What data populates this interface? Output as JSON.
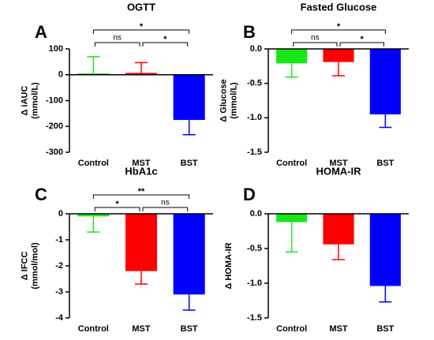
{
  "chart_data": [
    {
      "type": "bar",
      "panel_label": "A",
      "title": "OGTT",
      "ylabel": [
        "Δ iAUC",
        "(mmol/L)"
      ],
      "categories": [
        "Control",
        "MST",
        "BST"
      ],
      "values": [
        5,
        7,
        -175
      ],
      "errors": [
        65,
        40,
        57
      ],
      "colors": [
        "#19e619",
        "#ff0000",
        "#0000ff"
      ],
      "ylim": [
        -300,
        100
      ],
      "yticks": [
        -300,
        -200,
        -100,
        0,
        100
      ],
      "annotations": [
        {
          "from": "Control",
          "to": "MST",
          "label": "ns"
        },
        {
          "from": "MST",
          "to": "BST",
          "label": "*"
        },
        {
          "from": "Control",
          "to": "BST",
          "label": "*"
        }
      ]
    },
    {
      "type": "bar",
      "panel_label": "B",
      "title": "Fasted Glucose",
      "ylabel": [
        "Δ Glucose",
        "(mmol/L)"
      ],
      "categories": [
        "Control",
        "MST",
        "BST"
      ],
      "values": [
        -0.21,
        -0.19,
        -0.95
      ],
      "errors": [
        0.2,
        0.2,
        0.19
      ],
      "colors": [
        "#19e619",
        "#ff0000",
        "#0000ff"
      ],
      "ylim": [
        -1.5,
        0
      ],
      "yticks": [
        -1.5,
        {
          "value": -1,
          "label": "-1.0"
        },
        -0.5,
        {
          "value": 0,
          "label": "0.0"
        }
      ],
      "annotations": [
        {
          "from": "Control",
          "to": "MST",
          "label": "ns"
        },
        {
          "from": "MST",
          "to": "BST",
          "label": "*"
        },
        {
          "from": "Control",
          "to": "BST",
          "label": "*"
        }
      ]
    },
    {
      "type": "bar",
      "panel_label": "C",
      "title": "HbA1c",
      "ylabel": [
        "Δ IFCC",
        "(mmol/mol)"
      ],
      "categories": [
        "Control",
        "MST",
        "BST"
      ],
      "values": [
        -0.1,
        -2.2,
        -3.1
      ],
      "errors": [
        0.6,
        0.5,
        0.6
      ],
      "colors": [
        "#19e619",
        "#ff0000",
        "#0000ff"
      ],
      "ylim": [
        -4,
        0
      ],
      "yticks": [
        -4,
        -3,
        -2,
        -1,
        0
      ],
      "annotations": [
        {
          "from": "Control",
          "to": "MST",
          "label": "*"
        },
        {
          "from": "MST",
          "to": "BST",
          "label": "ns"
        },
        {
          "from": "Control",
          "to": "BST",
          "label": "**"
        }
      ]
    },
    {
      "type": "bar",
      "panel_label": "D",
      "title": "HOMA-IR",
      "ylabel": [
        "Δ HOMA-IR"
      ],
      "categories": [
        "Control",
        "MST",
        "BST"
      ],
      "values": [
        -0.12,
        -0.44,
        -1.04
      ],
      "errors": [
        0.43,
        0.22,
        0.23
      ],
      "colors": [
        "#19e619",
        "#ff0000",
        "#0000ff"
      ],
      "ylim": [
        -1.5,
        0
      ],
      "yticks": [
        -1.5,
        {
          "value": -1,
          "label": "-1.0"
        },
        -0.5,
        {
          "value": 0,
          "label": "0.0"
        }
      ],
      "annotations": []
    }
  ]
}
